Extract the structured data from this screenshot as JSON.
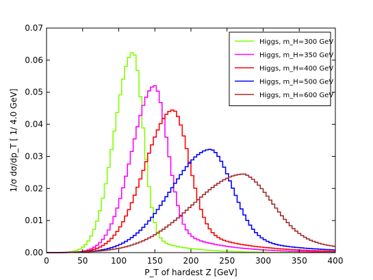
{
  "chart_data": {
    "type": "line",
    "step": true,
    "xlabel": "P_T of hardest Z [GeV]",
    "ylabel": "1/σ dσ/dp_T [ 1/ 4.0 GeV]",
    "xlim": [
      0,
      400
    ],
    "ylim": [
      0,
      0.07
    ],
    "xticks": [
      "0",
      "50",
      "100",
      "150",
      "200",
      "250",
      "300",
      "350",
      "400"
    ],
    "yticks": [
      "0.00",
      "0.01",
      "0.02",
      "0.03",
      "0.04",
      "0.05",
      "0.06",
      "0.07"
    ],
    "bin_width": 4,
    "grid": false,
    "legend_position": "top-right",
    "series": [
      {
        "name": "Higgs, m_H=300 GeV",
        "color": "#7fff00",
        "mean": 120,
        "peak": 0.0625,
        "sigmaL": 26,
        "sigmaR": 14,
        "tailFrac": 0.12,
        "tailDecay": 45
      },
      {
        "name": "Higgs, m_H=350 GeV",
        "color": "#ff00ff",
        "mean": 150,
        "peak": 0.052,
        "sigmaL": 32,
        "sigmaR": 18,
        "tailFrac": 0.2,
        "tailDecay": 60
      },
      {
        "name": "Higgs, m_H=400 GeV",
        "color": "#ff0000",
        "mean": 176,
        "peak": 0.0445,
        "sigmaL": 40,
        "sigmaR": 22,
        "tailFrac": 0.22,
        "tailDecay": 70
      },
      {
        "name": "Higgs, m_H=500 GeV",
        "color": "#0000ff",
        "mean": 228,
        "peak": 0.0322,
        "sigmaL": 56,
        "sigmaR": 30,
        "tailFrac": 0.22,
        "tailDecay": 80
      },
      {
        "name": "Higgs, m_H=600 GeV",
        "color": "#a52a2a",
        "mean": 274,
        "peak": 0.0245,
        "sigmaL": 72,
        "sigmaR": 40,
        "tailFrac": 0.3,
        "tailDecay": 90
      }
    ]
  }
}
